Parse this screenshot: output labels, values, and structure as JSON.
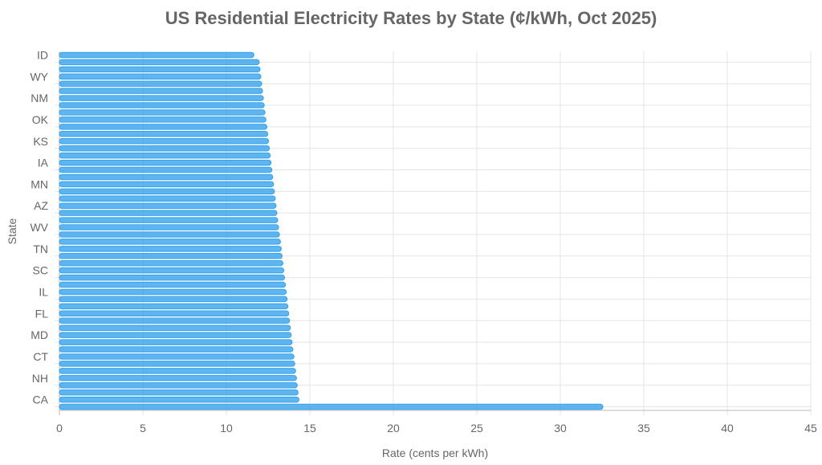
{
  "chart_data": {
    "type": "bar",
    "orientation": "horizontal",
    "title": "US Residential Electricity Rates by State (¢/kWh, Oct 2025)",
    "xlabel": "Rate (cents per kWh)",
    "ylabel": "State",
    "xlim": [
      0,
      45
    ],
    "xticks": [
      0,
      5,
      10,
      15,
      20,
      25,
      30,
      35,
      40,
      45
    ],
    "grid": true,
    "legend": "none",
    "bar_color": "#36a2eb",
    "categories": [
      "ID",
      "",
      "",
      "WY",
      "",
      "",
      "NM",
      "",
      "",
      "OK",
      "",
      "",
      "KS",
      "",
      "",
      "IA",
      "",
      "",
      "MN",
      "",
      "",
      "AZ",
      "",
      "",
      "WV",
      "",
      "",
      "TN",
      "",
      "",
      "SC",
      "",
      "",
      "IL",
      "",
      "",
      "FL",
      "",
      "",
      "MD",
      "",
      "",
      "CT",
      "",
      "",
      "NH",
      "",
      "",
      "CA",
      ""
    ],
    "values": [
      11.65,
      11.97,
      12.02,
      12.07,
      12.12,
      12.17,
      12.22,
      12.27,
      12.32,
      12.37,
      12.43,
      12.48,
      12.53,
      12.58,
      12.63,
      12.68,
      12.73,
      12.78,
      12.83,
      12.88,
      12.93,
      12.98,
      13.03,
      13.08,
      13.13,
      13.18,
      13.24,
      13.29,
      13.34,
      13.39,
      13.44,
      13.49,
      13.54,
      13.59,
      13.64,
      13.69,
      13.74,
      13.79,
      13.84,
      13.89,
      13.94,
      13.99,
      14.05,
      14.1,
      14.15,
      14.2,
      14.25,
      14.3,
      14.35,
      32.55
    ]
  }
}
